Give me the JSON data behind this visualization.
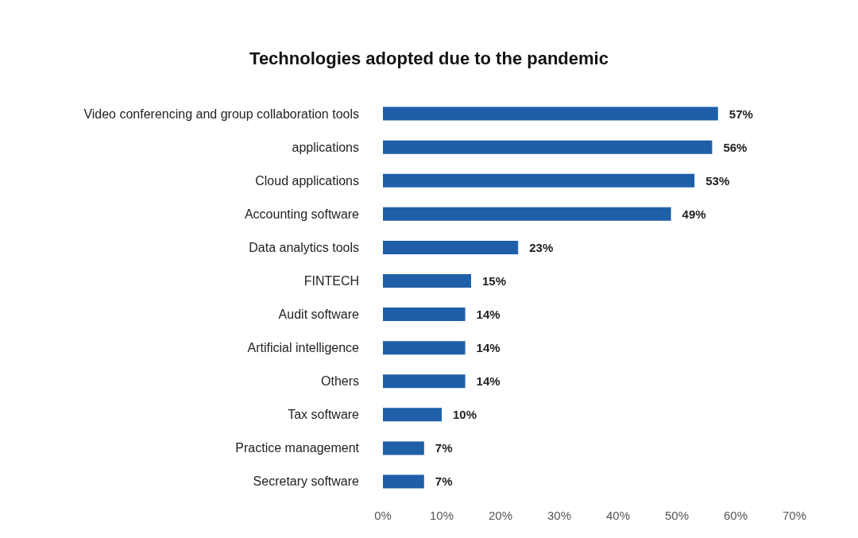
{
  "chart_data": {
    "type": "bar",
    "orientation": "horizontal",
    "title": "Technologies adopted due to the pandemic",
    "categories": [
      "Video conferencing and group collaboration tools",
      "applications",
      "Cloud applications",
      "Accounting software",
      "Data analytics tools",
      "FINTECH",
      "Audit software",
      "Artificial intelligence",
      "Others",
      "Tax software",
      "Practice management",
      "Secretary software"
    ],
    "values": [
      57,
      56,
      53,
      49,
      23,
      15,
      14,
      14,
      14,
      10,
      7,
      7
    ],
    "value_labels": [
      "57%",
      "56%",
      "53%",
      "49%",
      "23%",
      "15%",
      "14%",
      "14%",
      "14%",
      "10%",
      "7%",
      "7%"
    ],
    "color": "#1f5fa8",
    "xlim": [
      0,
      70
    ],
    "xticks": [
      {
        "value": 0,
        "label": "0%"
      },
      {
        "value": 10,
        "label": "10%"
      },
      {
        "value": 20,
        "label": "20%"
      },
      {
        "value": 30,
        "label": "30%"
      },
      {
        "value": 40,
        "label": "40%"
      },
      {
        "value": 50,
        "label": "50%"
      },
      {
        "value": 60,
        "label": "60%"
      },
      {
        "value": 70,
        "label": "70%"
      }
    ]
  }
}
